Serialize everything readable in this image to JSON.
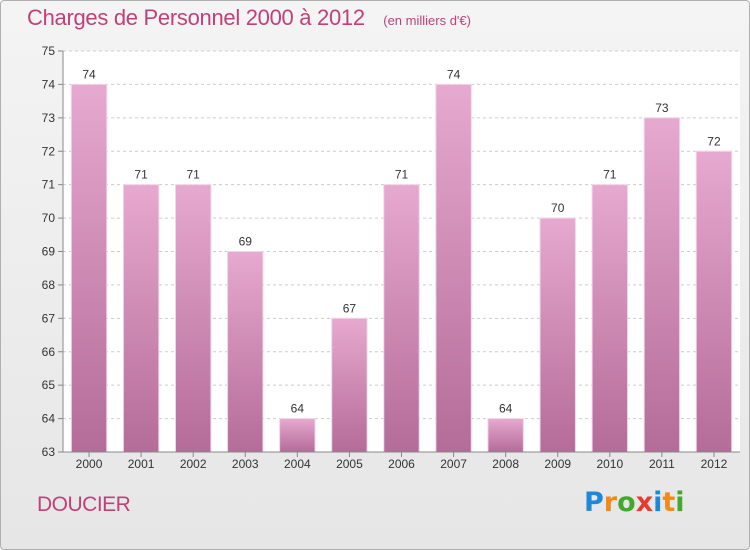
{
  "chart_data": {
    "type": "bar",
    "title": "Charges de Personnel 2000 à 2012",
    "subtitle": "(en milliers d'€)",
    "categories": [
      "2000",
      "2001",
      "2002",
      "2003",
      "2004",
      "2005",
      "2006",
      "2007",
      "2008",
      "2009",
      "2010",
      "2011",
      "2012"
    ],
    "values": [
      74,
      71,
      71,
      69,
      64,
      67,
      71,
      74,
      64,
      70,
      71,
      73,
      72
    ],
    "ylim": [
      63,
      75
    ],
    "yticks": [
      63,
      64,
      65,
      66,
      67,
      68,
      69,
      70,
      71,
      72,
      73,
      74,
      75
    ],
    "grid": true,
    "colors": {
      "bar_top": "#e6a9cf",
      "bar_bottom": "#b46c98",
      "text": "#c2407a"
    }
  },
  "footer": {
    "place": "DOUCIER",
    "logo": [
      "P",
      "r",
      "o",
      "x",
      "i",
      "t",
      "i"
    ],
    "logo_colors": [
      "#1e88d8",
      "#f08a1c",
      "#43a82e",
      "#e43c2f",
      "#1e88d8",
      "#f08a1c",
      "#43a82e"
    ]
  }
}
